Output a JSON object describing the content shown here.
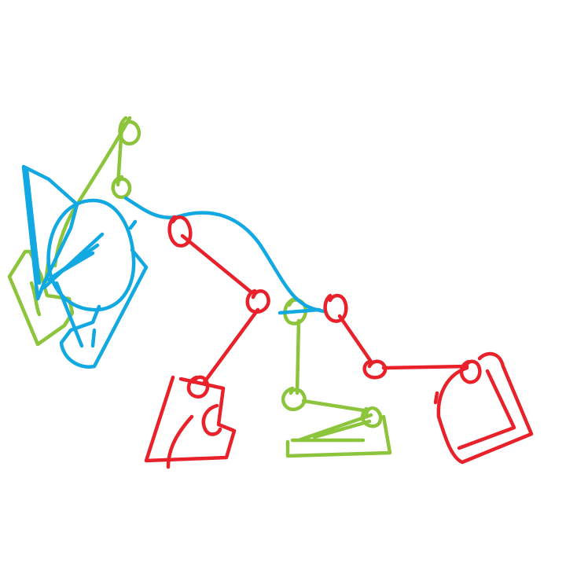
{
  "drawing": {
    "stroke_groups": [
      {
        "name": "red",
        "color": "#e8212b"
      },
      {
        "name": "green",
        "color": "#8cc43c"
      },
      {
        "name": "blue",
        "color": "#12a9e2"
      }
    ],
    "background": "#ffffff"
  }
}
